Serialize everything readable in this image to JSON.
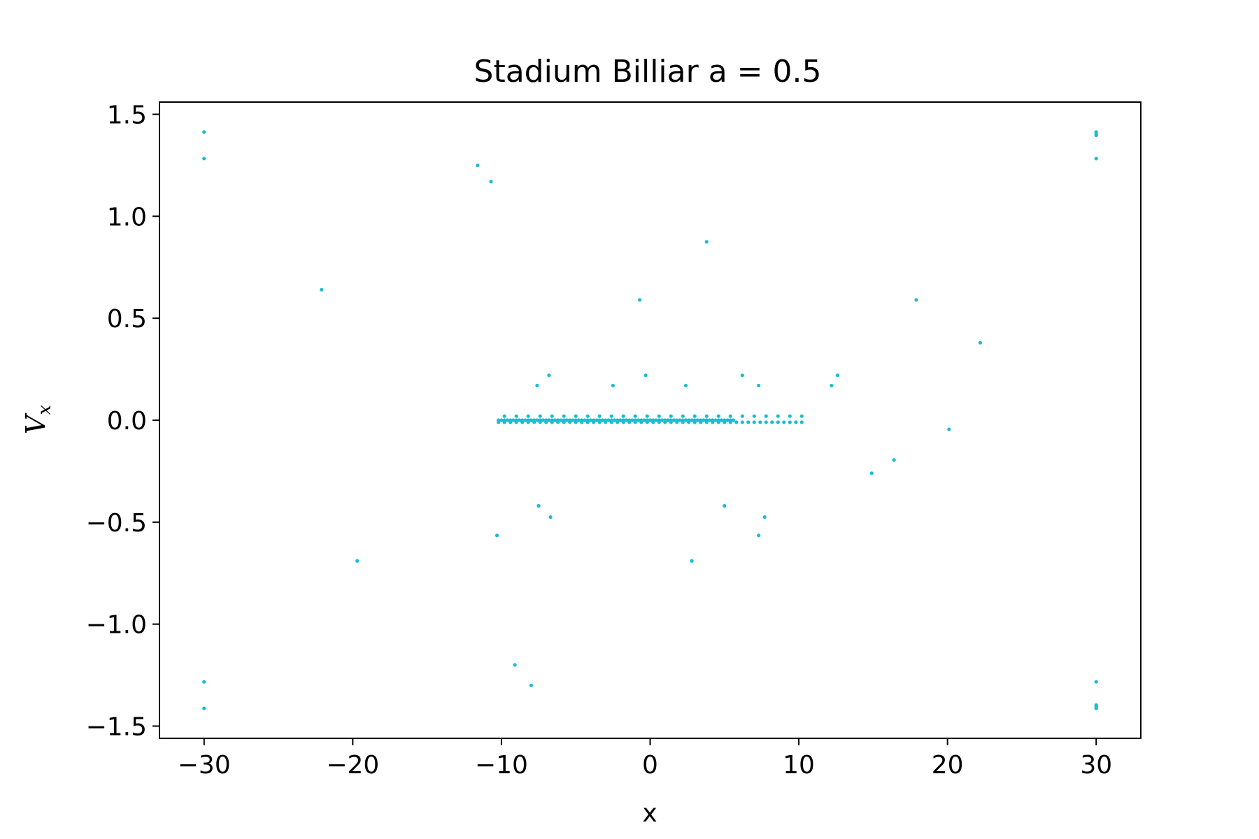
{
  "chart_data": {
    "type": "scatter",
    "title": "Stadium Billiar a = 0.5",
    "xlabel": "x",
    "ylabel_main": "V",
    "ylabel_sub": "x",
    "xlim": [
      -33,
      33
    ],
    "ylim": [
      -1.56,
      1.56
    ],
    "xticks": [
      -30,
      -20,
      -10,
      0,
      10,
      20,
      30
    ],
    "xtick_labels": [
      "−30",
      "−20",
      "−10",
      "0",
      "10",
      "20",
      "30"
    ],
    "yticks": [
      -1.5,
      -1.0,
      -0.5,
      0.0,
      0.5,
      1.0,
      1.5
    ],
    "ytick_labels": [
      "−1.5",
      "−1.0",
      "−0.5",
      "0.0",
      "0.5",
      "1.0",
      "1.5"
    ],
    "grid": false,
    "marker_color": "#17BECF",
    "series": [
      {
        "points": [
          [
            -30,
            1.413
          ],
          [
            -30,
            1.283
          ],
          [
            -30,
            -1.283
          ],
          [
            -30,
            -1.413
          ],
          [
            30,
            1.413
          ],
          [
            30,
            1.405
          ],
          [
            30,
            1.397
          ],
          [
            30,
            1.283
          ],
          [
            30,
            -1.283
          ],
          [
            30,
            -1.397
          ],
          [
            30,
            -1.405
          ],
          [
            30,
            -1.413
          ],
          [
            -11.6,
            1.25
          ],
          [
            -10.7,
            1.17
          ],
          [
            -22.1,
            0.64
          ],
          [
            -19.7,
            -0.69
          ],
          [
            -10.3,
            -0.565
          ],
          [
            -9.1,
            -1.2
          ],
          [
            -8.0,
            -1.3
          ],
          [
            -7.5,
            -0.42
          ],
          [
            -6.7,
            -0.475
          ],
          [
            -7.6,
            0.17
          ],
          [
            -6.8,
            0.22
          ],
          [
            -2.5,
            0.17
          ],
          [
            -0.7,
            0.59
          ],
          [
            -0.3,
            0.22
          ],
          [
            2.4,
            0.17
          ],
          [
            3.8,
            0.875
          ],
          [
            2.8,
            -0.69
          ],
          [
            5.0,
            -0.42
          ],
          [
            6.2,
            0.22
          ],
          [
            7.3,
            0.17
          ],
          [
            7.3,
            -0.565
          ],
          [
            7.7,
            -0.475
          ],
          [
            12.2,
            0.17
          ],
          [
            12.6,
            0.22
          ],
          [
            14.9,
            -0.26
          ],
          [
            16.4,
            -0.195
          ],
          [
            17.9,
            0.59
          ],
          [
            20.1,
            -0.045
          ],
          [
            22.2,
            0.38
          ]
        ]
      }
    ],
    "band": {
      "x_start": -10.2,
      "x_end": 10.2,
      "dense_end": 5.8,
      "upper_y": 0.02,
      "center_y": 0.0,
      "lower_y": -0.01
    }
  }
}
